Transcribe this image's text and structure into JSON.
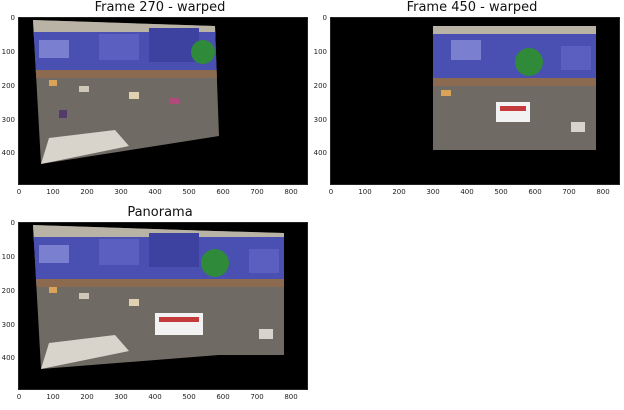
{
  "figure": {
    "panels": [
      {
        "title": "Frame 270 - warped",
        "x_ticks": [
          "0",
          "100",
          "200",
          "300",
          "400",
          "500",
          "600",
          "700",
          "800"
        ],
        "y_ticks": [
          "0",
          "100",
          "200",
          "300",
          "400"
        ]
      },
      {
        "title": "Frame 450 - warped",
        "x_ticks": [
          "0",
          "100",
          "200",
          "300",
          "400",
          "500",
          "600",
          "700",
          "800"
        ],
        "y_ticks": [
          "0",
          "100",
          "200",
          "300",
          "400"
        ]
      },
      {
        "title": "Panorama",
        "x_ticks": [
          "0",
          "100",
          "200",
          "300",
          "400",
          "500",
          "600",
          "700",
          "800"
        ],
        "y_ticks": [
          "0",
          "100",
          "200",
          "300",
          "400"
        ]
      }
    ]
  },
  "colors": {
    "axes_background": "#000000",
    "sky": "#b9b3a6",
    "buildings_blue": "#4a4fb2",
    "road": "#6f6a63",
    "tree": "#2f8a3a",
    "bus": "#f2f2f2"
  }
}
